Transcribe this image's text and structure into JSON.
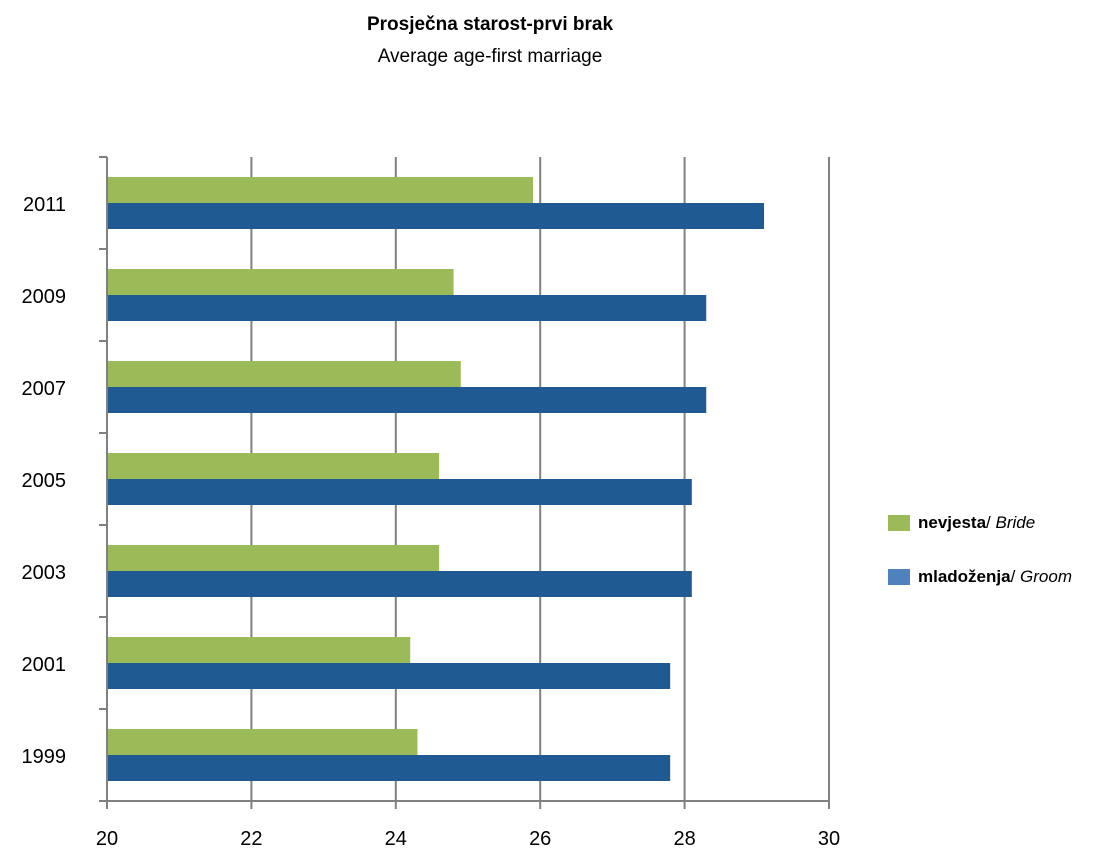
{
  "chart_data": {
    "type": "bar",
    "orientation": "horizontal",
    "title": "Prosječna starost-prvi brak",
    "subtitle": "Average age-first marriage",
    "categories": [
      "2011",
      "2009",
      "2007",
      "2005",
      "2003",
      "2001",
      "1999"
    ],
    "series": [
      {
        "name_bold": "nevjesta",
        "name_separator": "/ ",
        "name_italic": "Bride",
        "color": "#9bbb59",
        "values": [
          25.9,
          24.8,
          24.9,
          24.6,
          24.6,
          24.2,
          24.3
        ]
      },
      {
        "name_bold": "mladoženja",
        "name_separator": "/ ",
        "name_italic": "Groom",
        "color": "#1f5a93",
        "values": [
          29.1,
          28.3,
          28.3,
          28.1,
          28.1,
          27.8,
          27.8
        ]
      }
    ],
    "xlim": [
      20,
      30
    ],
    "xticks": [
      "20",
      "22",
      "24",
      "26",
      "28",
      "30"
    ],
    "xtick_values": [
      20,
      22,
      24,
      26,
      28,
      30
    ],
    "grid": "vertical",
    "legend_position": "right",
    "legend_swatch_colors": [
      "#9bbb59",
      "#4f81bd"
    ],
    "gridline_color": "#808080",
    "axis_color": "#808080"
  }
}
